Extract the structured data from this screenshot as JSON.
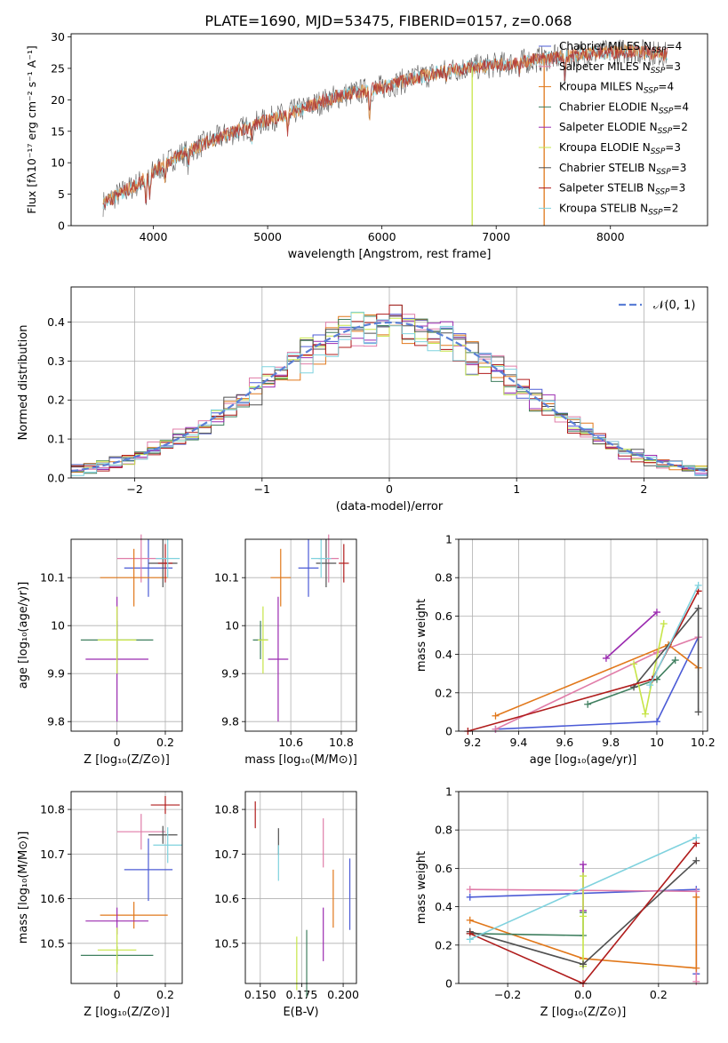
{
  "figure_title": "PLATE=1690, MJD=53475, FIBERID=0157, z=0.068",
  "colors": {
    "Chabrier MILES": "#4b5bd6",
    "Salpeter MILES": "#e07ca8",
    "Kroupa MILES": "#e1781b",
    "Chabrier ELODIE": "#3f7f5f",
    "Salpeter ELODIE": "#9b2bb0",
    "Kroupa ELODIE": "#c7e548",
    "Chabrier STELIB": "#505050",
    "Salpeter STELIB": "#b01c1c",
    "Kroupa STELIB": "#7fd2de",
    "spectrum_colors": [
      "#555555",
      "#82d6e0",
      "#e08a3a",
      "#b03030"
    ]
  },
  "chart_data": [
    {
      "id": "spectrum",
      "type": "line",
      "title": "PLATE=1690, MJD=53475, FIBERID=0157, z=0.068",
      "xlabel": "wavelength [Angstrom, rest frame]",
      "ylabel": "Flux [fλ10⁻¹⁷ erg cm⁻² s⁻¹ A⁻¹]",
      "xlim": [
        3280,
        8850
      ],
      "ylim": [
        0,
        30.5
      ],
      "xticks": [
        4000,
        5000,
        6000,
        7000,
        8000
      ],
      "yticks": [
        0,
        5,
        10,
        15,
        20,
        25,
        30
      ],
      "grid": false,
      "legend_position": "right",
      "legend": [
        {
          "model": "Chabrier MILES",
          "n": "4"
        },
        {
          "model": "Salpeter MILES",
          "n": "3"
        },
        {
          "model": "Kroupa MILES",
          "n": "4"
        },
        {
          "model": "Chabrier ELODIE",
          "n": "4"
        },
        {
          "model": "Salpeter ELODIE",
          "n": "2"
        },
        {
          "model": "Kroupa ELODIE",
          "n": "3"
        },
        {
          "model": "Chabrier STELIB",
          "n": "3"
        },
        {
          "model": "Salpeter STELIB",
          "n": "3"
        },
        {
          "model": "Kroupa STELIB",
          "n": "2"
        }
      ],
      "legend_n_label": "N",
      "legend_n_sub": "SSP",
      "continuum": [
        [
          3560,
          3.5
        ],
        [
          3700,
          5
        ],
        [
          3850,
          6.5
        ],
        [
          4000,
          8.5
        ],
        [
          4200,
          11
        ],
        [
          4500,
          13.5
        ],
        [
          4800,
          15.5
        ],
        [
          5000,
          16.8
        ],
        [
          5300,
          18.5
        ],
        [
          5600,
          20.5
        ],
        [
          6000,
          22
        ],
        [
          6300,
          23.5
        ],
        [
          6600,
          24.8
        ],
        [
          7000,
          25.5
        ],
        [
          7400,
          26.5
        ],
        [
          7800,
          27.3
        ],
        [
          8200,
          27.8
        ],
        [
          8500,
          27.2
        ]
      ],
      "absorptions": [
        [
          3934,
          4
        ],
        [
          3968,
          3
        ],
        [
          4101,
          2
        ],
        [
          4304,
          2.5
        ],
        [
          4861,
          2
        ],
        [
          5175,
          3
        ],
        [
          5893,
          4
        ],
        [
          6563,
          1.5
        ],
        [
          7200,
          1.5
        ],
        [
          7600,
          3
        ]
      ],
      "spikes": [
        [
          6790,
          0
        ],
        [
          7420,
          0
        ]
      ]
    },
    {
      "id": "residuals",
      "type": "area",
      "xlabel": "(data-model)/error",
      "ylabel": "Normed distribution",
      "xlim": [
        -2.5,
        2.5
      ],
      "ylim": [
        0,
        0.49
      ],
      "xticks": [
        -2,
        -1,
        0,
        1,
        2
      ],
      "yticks": [
        0.0,
        0.1,
        0.2,
        0.3,
        0.4
      ],
      "xtick_labels": [
        "−2",
        "−1",
        "0",
        "1",
        "2"
      ],
      "ytick_labels": [
        "0.0",
        "0.1",
        "0.2",
        "0.3",
        "0.4"
      ],
      "grid": true,
      "bin_width": 0.1,
      "legend_position": "top-right",
      "legend": "𝒩(0, 1)"
    },
    {
      "id": "age_vs_Z",
      "type": "scatter",
      "xlabel": "Z [log₁₀(Z/Z⊙)]",
      "ylabel": "age  [log₁₀(age/yr)]",
      "xlim": [
        -0.19,
        0.27
      ],
      "ylim": [
        9.78,
        10.18
      ],
      "xticks": [
        0.0,
        0.2
      ],
      "yticks": [
        9.8,
        9.9,
        10.0,
        10.1
      ],
      "grid": true,
      "points": [
        {
          "model": "Chabrier MILES",
          "x": 0.13,
          "y": 10.12,
          "ex": 0.1,
          "ey": 0.06
        },
        {
          "model": "Salpeter MILES",
          "x": 0.1,
          "y": 10.14,
          "ex": 0.1,
          "ey": 0.05
        },
        {
          "model": "Kroupa MILES",
          "x": 0.07,
          "y": 10.1,
          "ex": 0.14,
          "ey": 0.06
        },
        {
          "model": "Chabrier ELODIE",
          "x": 0.0,
          "y": 9.97,
          "ex": 0.15,
          "ey": 0.04
        },
        {
          "model": "Salpeter ELODIE",
          "x": 0.0,
          "y": 9.93,
          "ex": 0.13,
          "ey": 0.13
        },
        {
          "model": "Kroupa ELODIE",
          "x": 0.0,
          "y": 9.97,
          "ex": 0.08,
          "ey": 0.07
        },
        {
          "model": "Chabrier STELIB",
          "x": 0.19,
          "y": 10.13,
          "ex": 0.06,
          "ey": 0.05
        },
        {
          "model": "Salpeter STELIB",
          "x": 0.2,
          "y": 10.13,
          "ex": 0.03,
          "ey": 0.04
        },
        {
          "model": "Kroupa STELIB",
          "x": 0.21,
          "y": 10.14,
          "ex": 0.05,
          "ey": 0.04
        }
      ]
    },
    {
      "id": "age_vs_mass",
      "type": "scatter",
      "xlabel": "mass [log₁₀(M/M⊙)]",
      "ylabel": "",
      "xlim": [
        10.42,
        10.86
      ],
      "ylim": [
        9.78,
        10.18
      ],
      "xticks": [
        10.6,
        10.8
      ],
      "yticks": [
        9.8,
        9.9,
        10.0,
        10.1
      ],
      "grid": true,
      "points": [
        {
          "model": "Chabrier MILES",
          "x": 10.67,
          "y": 10.12,
          "ex": 0.04,
          "ey": 0.06
        },
        {
          "model": "Salpeter MILES",
          "x": 10.75,
          "y": 10.14,
          "ex": 0.04,
          "ey": 0.05
        },
        {
          "model": "Kroupa MILES",
          "x": 10.56,
          "y": 10.1,
          "ex": 0.04,
          "ey": 0.06
        },
        {
          "model": "Chabrier ELODIE",
          "x": 10.48,
          "y": 9.97,
          "ex": 0.03,
          "ey": 0.04
        },
        {
          "model": "Salpeter ELODIE",
          "x": 10.55,
          "y": 9.93,
          "ex": 0.04,
          "ey": 0.13
        },
        {
          "model": "Kroupa ELODIE",
          "x": 10.49,
          "y": 9.97,
          "ex": 0.02,
          "ey": 0.07
        },
        {
          "model": "Chabrier STELIB",
          "x": 10.74,
          "y": 10.13,
          "ex": 0.04,
          "ey": 0.05
        },
        {
          "model": "Salpeter STELIB",
          "x": 10.81,
          "y": 10.13,
          "ex": 0.02,
          "ey": 0.04
        },
        {
          "model": "Kroupa STELIB",
          "x": 10.72,
          "y": 10.14,
          "ex": 0.04,
          "ey": 0.04
        }
      ]
    },
    {
      "id": "weight_vs_age",
      "type": "line",
      "xlabel": "age  [log₁₀(age/yr)]",
      "ylabel": "mass weight",
      "xlim": [
        9.14,
        10.22
      ],
      "ylim": [
        0,
        1
      ],
      "xticks": [
        9.2,
        9.4,
        9.6,
        9.8,
        10.0,
        10.2
      ],
      "yticks": [
        0.0,
        0.2,
        0.4,
        0.6,
        0.8,
        1.0
      ],
      "grid": true,
      "series": [
        {
          "model": "Chabrier MILES",
          "x": [
            9.3,
            10.0,
            10.18
          ],
          "y": [
            0.01,
            0.05,
            0.49
          ]
        },
        {
          "model": "Salpeter MILES",
          "x": [
            9.3,
            10.0,
            10.18
          ],
          "y": [
            0.01,
            0.41,
            0.49
          ]
        },
        {
          "model": "Kroupa MILES",
          "x": [
            9.3,
            10.05,
            10.18
          ],
          "y": [
            0.08,
            0.45,
            0.33
          ]
        },
        {
          "model": "Chabrier ELODIE",
          "x": [
            9.7,
            10.0,
            10.08
          ],
          "y": [
            0.14,
            0.27,
            0.37
          ]
        },
        {
          "model": "Salpeter ELODIE",
          "x": [
            9.78,
            10.0
          ],
          "y": [
            0.38,
            0.62
          ]
        },
        {
          "model": "Kroupa ELODIE",
          "x": [
            9.9,
            9.95,
            10.03
          ],
          "y": [
            0.35,
            0.09,
            0.56
          ]
        },
        {
          "model": "Chabrier STELIB",
          "x": [
            9.9,
            10.18,
            10.18
          ],
          "y": [
            0.23,
            0.64,
            0.1
          ]
        },
        {
          "model": "Salpeter STELIB",
          "x": [
            9.18,
            9.98,
            10.18
          ],
          "y": [
            0.0,
            0.27,
            0.73
          ]
        },
        {
          "model": "Kroupa STELIB",
          "x": [
            9.97,
            10.18
          ],
          "y": [
            0.24,
            0.76
          ]
        }
      ]
    },
    {
      "id": "mass_vs_Z",
      "type": "scatter",
      "xlabel": "Z [log₁₀(Z/Z⊙)]",
      "ylabel": "mass [log₁₀(M/M⊙)]",
      "xlim": [
        -0.19,
        0.27
      ],
      "ylim": [
        10.41,
        10.84
      ],
      "xticks": [
        0.0,
        0.2
      ],
      "yticks": [
        10.5,
        10.6,
        10.7,
        10.8
      ],
      "grid": true,
      "points": [
        {
          "model": "Chabrier MILES",
          "x": 0.13,
          "y": 10.665,
          "ex": 0.1,
          "ey": 0.07
        },
        {
          "model": "Salpeter MILES",
          "x": 0.1,
          "y": 10.75,
          "ex": 0.1,
          "ey": 0.04
        },
        {
          "model": "Kroupa MILES",
          "x": 0.07,
          "y": 10.563,
          "ex": 0.14,
          "ey": 0.03
        },
        {
          "model": "Chabrier ELODIE",
          "x": 0.0,
          "y": 10.473,
          "ex": 0.15,
          "ey": 0.02
        },
        {
          "model": "Salpeter ELODIE",
          "x": 0.0,
          "y": 10.55,
          "ex": 0.13,
          "ey": 0.03
        },
        {
          "model": "Kroupa ELODIE",
          "x": 0.0,
          "y": 10.485,
          "ex": 0.08,
          "ey": 0.05
        },
        {
          "model": "Chabrier STELIB",
          "x": 0.19,
          "y": 10.743,
          "ex": 0.06,
          "ey": 0.02
        },
        {
          "model": "Salpeter STELIB",
          "x": 0.2,
          "y": 10.81,
          "ex": 0.06,
          "ey": 0.02
        },
        {
          "model": "Kroupa STELIB",
          "x": 0.21,
          "y": 10.72,
          "ex": 0.06,
          "ey": 0.04
        }
      ]
    },
    {
      "id": "mass_vs_EBV",
      "type": "scatter",
      "xlabel": "E(B-V)",
      "ylabel": "",
      "xlim": [
        0.141,
        0.208
      ],
      "ylim": [
        10.41,
        10.84
      ],
      "xticks": [
        0.15,
        0.175,
        0.2
      ],
      "xtick_labels": [
        "0.150",
        "0.175",
        "0.200"
      ],
      "yticks": [
        10.5,
        10.6,
        10.7,
        10.8
      ],
      "grid": true,
      "points": [
        {
          "model": "Chabrier MILES",
          "x": 0.204,
          "y": 10.61,
          "ex": 0,
          "ey": 0.08
        },
        {
          "model": "Salpeter MILES",
          "x": 0.188,
          "y": 10.725,
          "ex": 0,
          "ey": 0.055
        },
        {
          "model": "Kroupa MILES",
          "x": 0.194,
          "y": 10.6,
          "ex": 0,
          "ey": 0.065
        },
        {
          "model": "Chabrier ELODIE",
          "x": 0.178,
          "y": 10.455,
          "ex": 0,
          "ey": 0.075
        },
        {
          "model": "Salpeter ELODIE",
          "x": 0.188,
          "y": 10.52,
          "ex": 0,
          "ey": 0.06
        },
        {
          "model": "Kroupa ELODIE",
          "x": 0.172,
          "y": 10.455,
          "ex": 0,
          "ey": 0.06
        },
        {
          "model": "Chabrier STELIB",
          "x": 0.161,
          "y": 10.728,
          "ex": 0,
          "ey": 0.03
        },
        {
          "model": "Salpeter STELIB",
          "x": 0.147,
          "y": 10.788,
          "ex": 0,
          "ey": 0.03
        },
        {
          "model": "Kroupa STELIB",
          "x": 0.161,
          "y": 10.68,
          "ex": 0,
          "ey": 0.04
        }
      ]
    },
    {
      "id": "weight_vs_Z",
      "type": "line",
      "xlabel": "Z [log₁₀(Z/Z⊙)]",
      "ylabel": "mass weight",
      "xlim": [
        -0.33,
        0.33
      ],
      "ylim": [
        0,
        1
      ],
      "xticks": [
        -0.2,
        0.0,
        0.2
      ],
      "xtick_labels": [
        "−0.2",
        "0.0",
        "0.2"
      ],
      "yticks": [
        0.0,
        0.2,
        0.4,
        0.6,
        0.8,
        1.0
      ],
      "grid": true,
      "series": [
        {
          "model": "Chabrier MILES",
          "x": [
            -0.3,
            0.3,
            0.3
          ],
          "y": [
            0.45,
            0.49,
            0.05
          ]
        },
        {
          "model": "Salpeter MILES",
          "x": [
            -0.3,
            0.3,
            0.3
          ],
          "y": [
            0.49,
            0.48,
            0.01
          ]
        },
        {
          "model": "Kroupa MILES",
          "x": [
            -0.3,
            0.0,
            0.3,
            0.3
          ],
          "y": [
            0.33,
            0.13,
            0.08,
            0.45
          ]
        },
        {
          "model": "Chabrier ELODIE",
          "x": [
            -0.3,
            0.0,
            0.0
          ],
          "y": [
            0.26,
            0.25,
            0.37
          ]
        },
        {
          "model": "Salpeter ELODIE",
          "x": [
            0.0,
            0.0
          ],
          "y": [
            0.38,
            0.62
          ]
        },
        {
          "model": "Kroupa ELODIE",
          "x": [
            0.0,
            0.0,
            0.0
          ],
          "y": [
            0.35,
            0.09,
            0.56
          ]
        },
        {
          "model": "Chabrier STELIB",
          "x": [
            -0.3,
            0.0,
            0.3
          ],
          "y": [
            0.27,
            0.1,
            0.64
          ]
        },
        {
          "model": "Salpeter STELIB",
          "x": [
            -0.3,
            0.0,
            0.3
          ],
          "y": [
            0.26,
            0.0,
            0.73
          ]
        },
        {
          "model": "Kroupa STELIB",
          "x": [
            -0.3,
            0.3
          ],
          "y": [
            0.23,
            0.76
          ]
        }
      ]
    }
  ]
}
